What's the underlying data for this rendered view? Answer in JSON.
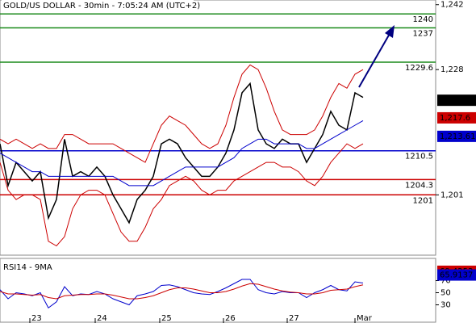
{
  "chart_data": {
    "type": "line",
    "title": "GOLD/US DOLLAR - 30min - 7:05:24 AM (UTC+2)",
    "ylim": [
      1188,
      1243
    ],
    "yticks": [
      {
        "value": 1242,
        "label": "1,242"
      },
      {
        "value": 1228,
        "label": "1,228"
      },
      {
        "value": 1201,
        "label": "1,201"
      }
    ],
    "xticks": [
      {
        "value": 3.7,
        "label": "23"
      },
      {
        "value": 11.8,
        "label": "24"
      },
      {
        "value": 19.8,
        "label": "25"
      },
      {
        "value": 27.7,
        "label": "26"
      },
      {
        "value": 35.6,
        "label": "27"
      },
      {
        "value": 44,
        "label": "Mar"
      }
    ],
    "xlim": [
      0,
      54
    ],
    "series": [
      {
        "name": "price",
        "color": "#000000",
        "values": [
          1212,
          1203,
          1208,
          1206,
          1204,
          1206,
          1196,
          1200,
          1213,
          1205,
          1206,
          1205,
          1207,
          1205,
          1201,
          1198,
          1195,
          1200,
          1202,
          1205,
          1212,
          1213,
          1212,
          1209,
          1207,
          1205,
          1205,
          1207,
          1210,
          1215,
          1223,
          1225,
          1215,
          1212,
          1211,
          1213,
          1212,
          1212,
          1208,
          1211,
          1214,
          1219,
          1216,
          1215,
          1223,
          1222
        ]
      },
      {
        "name": "upper band",
        "color": "#cc0000",
        "values": [
          1213,
          1212,
          1213,
          1212,
          1211,
          1212,
          1211,
          1211,
          1214,
          1214,
          1213,
          1212,
          1212,
          1212,
          1212,
          1211,
          1210,
          1209,
          1208,
          1212,
          1216,
          1218,
          1217,
          1216,
          1214,
          1212,
          1211,
          1212,
          1216,
          1222,
          1227,
          1229,
          1228,
          1224,
          1219,
          1215,
          1214,
          1214,
          1214,
          1215,
          1218,
          1222,
          1225,
          1224,
          1227,
          1228
        ]
      },
      {
        "name": "lower band",
        "color": "#cc0000",
        "values": [
          1208,
          1202,
          1200,
          1201,
          1201,
          1200,
          1191,
          1190,
          1192,
          1198,
          1201,
          1202,
          1202,
          1201,
          1197,
          1193,
          1191,
          1191,
          1194,
          1198,
          1200,
          1203,
          1204,
          1205,
          1204,
          1202,
          1201,
          1202,
          1202,
          1204,
          1205,
          1206,
          1207,
          1208,
          1208,
          1207,
          1207,
          1206,
          1204,
          1203,
          1205,
          1208,
          1210,
          1212,
          1211,
          1212
        ]
      },
      {
        "name": "moving average",
        "color": "#0000cc",
        "values": [
          1210,
          1209,
          1208,
          1207,
          1206,
          1206,
          1205,
          1205,
          1205,
          1205,
          1205,
          1205,
          1205,
          1205,
          1205,
          1204,
          1203,
          1203,
          1203,
          1203,
          1204,
          1205,
          1206,
          1207,
          1207,
          1207,
          1207,
          1207,
          1208,
          1209,
          1211,
          1212,
          1213,
          1213,
          1212,
          1212,
          1212,
          1212,
          1211,
          1211,
          1212,
          1213,
          1214,
          1215,
          1216,
          1217
        ]
      }
    ],
    "levels": [
      {
        "value": 1240,
        "color": "#1a8a1a"
      },
      {
        "value": 1237,
        "color": "#1a8a1a"
      },
      {
        "value": 1229.6,
        "color": "#1a8a1a"
      },
      {
        "value": 1210.5,
        "color": "#0000cc"
      },
      {
        "value": 1204.3,
        "color": "#cc0000"
      },
      {
        "value": 1201,
        "color": "#cc0000"
      }
    ],
    "price_tags": [
      {
        "value": 1221.39,
        "label": "1,221.39",
        "color": "#000000"
      },
      {
        "value": 1217.6,
        "label": "1,217.6",
        "color": "#cc0000"
      },
      {
        "value": 1213.61,
        "label": "1,213.61",
        "color": "#0000cc"
      }
    ],
    "rsi": {
      "title": "RSI14 - 9MA",
      "ylim": [
        0,
        100
      ],
      "yticks": [
        70,
        50,
        30
      ],
      "series": [
        {
          "name": "RSI",
          "color": "#0000cc",
          "values": [
            55,
            40,
            50,
            48,
            45,
            50,
            25,
            35,
            60,
            45,
            48,
            47,
            52,
            48,
            40,
            35,
            30,
            45,
            48,
            52,
            62,
            63,
            60,
            55,
            50,
            48,
            47,
            52,
            58,
            65,
            72,
            72,
            55,
            50,
            48,
            52,
            50,
            50,
            42,
            50,
            55,
            62,
            55,
            53,
            68,
            66
          ]
        },
        {
          "name": "MA",
          "color": "#cc0000",
          "values": [
            52,
            48,
            48,
            47,
            46,
            47,
            42,
            40,
            45,
            46,
            47,
            47,
            48,
            48,
            46,
            43,
            40,
            40,
            42,
            45,
            50,
            55,
            58,
            58,
            56,
            53,
            50,
            50,
            52,
            56,
            61,
            65,
            64,
            60,
            56,
            53,
            51,
            50,
            48,
            48,
            50,
            54,
            55,
            56,
            60,
            63
          ]
        }
      ],
      "tags": [
        {
          "value": 69.4253,
          "label": "69.4253",
          "color": "#cc0000"
        },
        {
          "value": 65.9137,
          "label": "65.9137",
          "color": "#0000cc"
        }
      ]
    }
  }
}
